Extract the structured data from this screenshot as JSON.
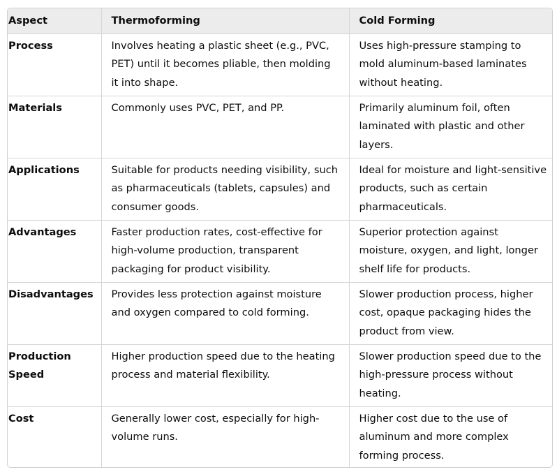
{
  "table": {
    "headers": [
      "Aspect",
      "Thermoforming",
      "Cold Forming"
    ],
    "rows": [
      {
        "aspect": "Process",
        "thermoforming": "Involves heating a plastic sheet (e.g., PVC, PET) until it becomes pliable, then molding it into shape.",
        "cold_forming": "Uses high-pressure stamping to mold aluminum-based laminates without heating."
      },
      {
        "aspect": "Materials",
        "thermoforming": "Commonly uses PVC, PET, and PP.",
        "cold_forming": "Primarily aluminum foil, often laminated with plastic and other layers."
      },
      {
        "aspect": "Applications",
        "thermoforming": "Suitable for products needing visibility, such as pharmaceuticals (tablets, capsules) and consumer goods.",
        "cold_forming": "Ideal for moisture and light-sensitive products, such as certain pharmaceuticals."
      },
      {
        "aspect": "Advantages",
        "thermoforming": "Faster production rates, cost-effective for high-volume production, transparent packaging for product visibility.",
        "cold_forming": "Superior protection against moisture, oxygen, and light, longer shelf life for products."
      },
      {
        "aspect": "Disadvantages",
        "thermoforming": "Provides less protection against moisture and oxygen compared to cold forming.",
        "cold_forming": "Slower production process, higher cost, opaque packaging hides the product from view."
      },
      {
        "aspect": "Production Speed",
        "thermoforming": "Higher production speed due to the heating process and material flexibility.",
        "cold_forming": "Slower production speed due to the high-pressure process without heating."
      },
      {
        "aspect": "Cost",
        "thermoforming": "Generally lower cost, especially for high-volume runs.",
        "cold_forming": "Higher cost due to the use of aluminum and more complex forming process."
      }
    ]
  }
}
